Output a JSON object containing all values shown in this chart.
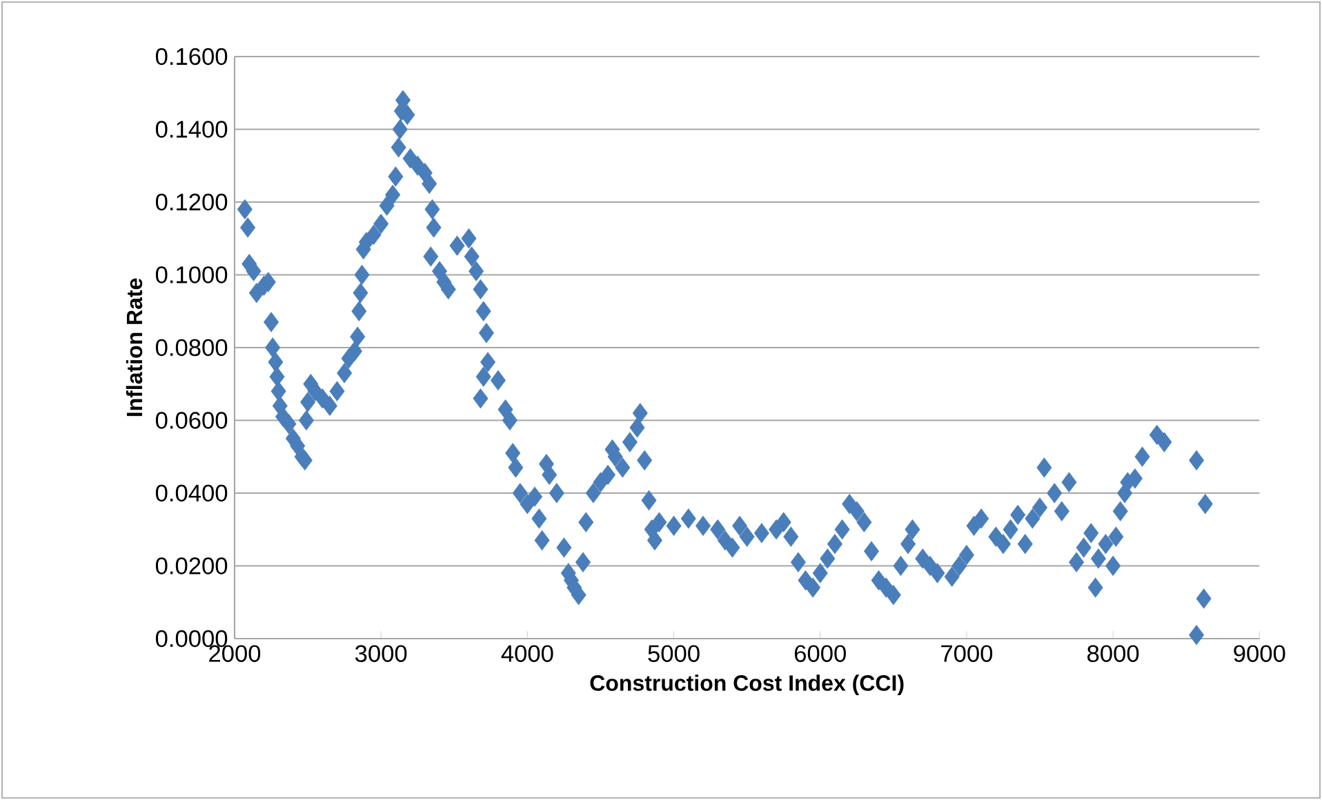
{
  "chart_data": {
    "type": "scatter",
    "xlabel": "Construction Cost Index (CCI)",
    "ylabel": "Inflation Rate",
    "x": [
      2070,
      2090,
      2100,
      2130,
      2150,
      2200,
      2230,
      2250,
      2260,
      2280,
      2290,
      2300,
      2310,
      2330,
      2370,
      2400,
      2430,
      2460,
      2480,
      2490,
      2500,
      2520,
      2550,
      2600,
      2650,
      2700,
      2750,
      2780,
      2820,
      2840,
      2850,
      2860,
      2870,
      2880,
      2900,
      2950,
      3000,
      3040,
      3080,
      3100,
      3120,
      3130,
      3140,
      3150,
      3180,
      3200,
      3250,
      3300,
      3330,
      3350,
      3360,
      3340,
      3400,
      3430,
      3460,
      3520,
      3600,
      3620,
      3650,
      3680,
      3700,
      3720,
      3700,
      3680,
      3730,
      3800,
      3850,
      3880,
      3900,
      3920,
      3950,
      4000,
      4050,
      4080,
      4100,
      4130,
      4150,
      4200,
      4250,
      4280,
      4300,
      4320,
      4350,
      4380,
      4400,
      4450,
      4500,
      4550,
      4580,
      4600,
      4650,
      4700,
      4750,
      4770,
      4800,
      4830,
      4850,
      4870,
      4900,
      5000,
      5100,
      5200,
      5300,
      5350,
      5400,
      5450,
      5500,
      5600,
      5700,
      5750,
      5800,
      5850,
      5900,
      5950,
      6000,
      6050,
      6100,
      6150,
      6200,
      6250,
      6300,
      6350,
      6400,
      6450,
      6500,
      6550,
      6600,
      6630,
      6700,
      6750,
      6800,
      6900,
      6950,
      7000,
      7050,
      7100,
      7200,
      7250,
      7300,
      7350,
      7400,
      7450,
      7500,
      7530,
      7600,
      7650,
      7700,
      7750,
      7800,
      7850,
      7880,
      7900,
      7950,
      8000,
      8020,
      8050,
      8080,
      8100,
      8150,
      8200,
      8300,
      8350,
      8570,
      8630,
      8620,
      8570
    ],
    "values": [
      0.118,
      0.113,
      0.103,
      0.101,
      0.095,
      0.097,
      0.098,
      0.087,
      0.08,
      0.076,
      0.072,
      0.068,
      0.064,
      0.061,
      0.059,
      0.055,
      0.053,
      0.05,
      0.049,
      0.06,
      0.065,
      0.07,
      0.068,
      0.066,
      0.064,
      0.068,
      0.073,
      0.077,
      0.079,
      0.083,
      0.09,
      0.095,
      0.1,
      0.107,
      0.109,
      0.111,
      0.114,
      0.119,
      0.122,
      0.127,
      0.135,
      0.14,
      0.145,
      0.148,
      0.144,
      0.132,
      0.13,
      0.128,
      0.125,
      0.118,
      0.113,
      0.105,
      0.101,
      0.098,
      0.096,
      0.108,
      0.11,
      0.105,
      0.101,
      0.096,
      0.09,
      0.084,
      0.072,
      0.066,
      0.076,
      0.071,
      0.063,
      0.06,
      0.051,
      0.047,
      0.04,
      0.037,
      0.039,
      0.033,
      0.027,
      0.048,
      0.045,
      0.04,
      0.025,
      0.018,
      0.016,
      0.014,
      0.012,
      0.021,
      0.032,
      0.04,
      0.043,
      0.045,
      0.052,
      0.05,
      0.047,
      0.054,
      0.058,
      0.062,
      0.049,
      0.038,
      0.03,
      0.027,
      0.032,
      0.031,
      0.033,
      0.031,
      0.03,
      0.027,
      0.025,
      0.031,
      0.028,
      0.029,
      0.03,
      0.032,
      0.028,
      0.021,
      0.016,
      0.014,
      0.018,
      0.022,
      0.026,
      0.03,
      0.037,
      0.035,
      0.032,
      0.024,
      0.016,
      0.014,
      0.012,
      0.02,
      0.026,
      0.03,
      0.022,
      0.02,
      0.018,
      0.017,
      0.02,
      0.023,
      0.031,
      0.033,
      0.028,
      0.026,
      0.03,
      0.034,
      0.026,
      0.033,
      0.036,
      0.047,
      0.04,
      0.035,
      0.043,
      0.021,
      0.025,
      0.029,
      0.014,
      0.022,
      0.026,
      0.02,
      0.028,
      0.035,
      0.04,
      0.043,
      0.044,
      0.05,
      0.056,
      0.054,
      0.049,
      0.037,
      0.011,
      0.001
    ],
    "color": "#4a7ebb",
    "marker": "diamond",
    "grid": "y",
    "xlim": [
      2000,
      9000
    ],
    "xticks": [
      2000,
      3000,
      4000,
      5000,
      6000,
      7000,
      8000,
      9000
    ],
    "ylim": [
      0,
      0.16
    ],
    "yticks": [
      {
        "value": 0,
        "label": "0.0000"
      },
      {
        "value": 0.02,
        "label": "0.0200"
      },
      {
        "value": 0.04,
        "label": "0.0400"
      },
      {
        "value": 0.06,
        "label": "0.0600"
      },
      {
        "value": 0.08,
        "label": "0.0800"
      },
      {
        "value": 0.1,
        "label": "0.1000"
      },
      {
        "value": 0.12,
        "label": "0.1200"
      },
      {
        "value": 0.14,
        "label": "0.1400"
      },
      {
        "value": 0.16,
        "label": "0.1600"
      }
    ]
  }
}
